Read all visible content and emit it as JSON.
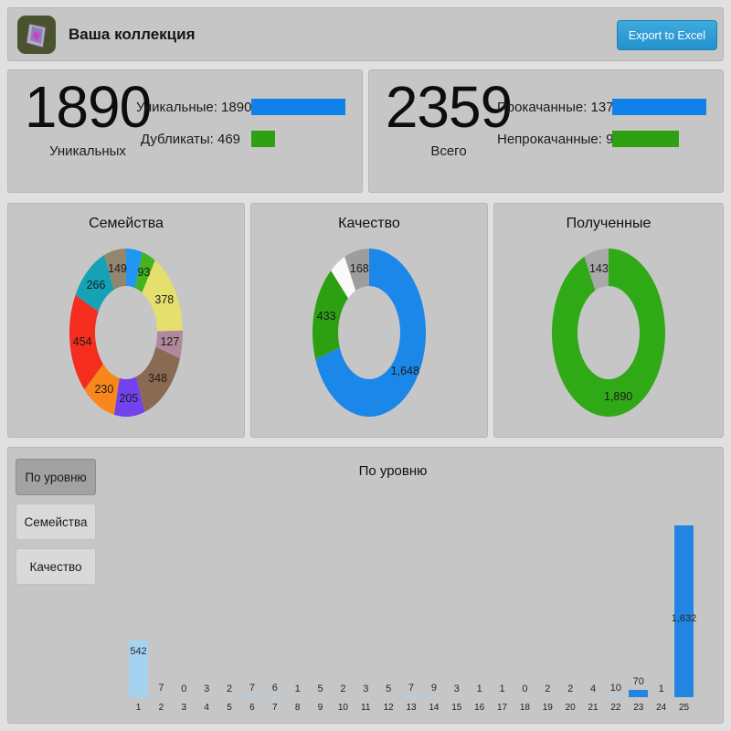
{
  "header": {
    "title": "Ваша коллекция",
    "export_label": "Export to Excel"
  },
  "colors": {
    "page_bg": "#e0e0e0",
    "panel_bg": "#c6c6c6",
    "legend_blue": "#0e82e8",
    "legend_green": "#2ea012",
    "button_blue": "#2d9fd6",
    "bar_light": "#a6d2f2",
    "bar_strong": "#2285e2"
  },
  "stats": [
    {
      "big": "1890",
      "caption": "Уникальных",
      "max": 1890,
      "rows": [
        {
          "label": "Уникальные: 1890",
          "value": 1890,
          "color": "#0e82e8"
        },
        {
          "label": "Дубликаты: 469",
          "value": 469,
          "color": "#2ea012"
        }
      ]
    },
    {
      "big": "2359",
      "caption": "Всего",
      "max": 1379,
      "rows": [
        {
          "label": "Прокачанные: 1379",
          "value": 1379,
          "color": "#0e82e8"
        },
        {
          "label": "Непрокачанные: 980",
          "value": 980,
          "color": "#2ea012"
        }
      ]
    }
  ],
  "tabs": [
    {
      "label": "По уровню",
      "active": true
    },
    {
      "label": "Семейства",
      "active": false
    },
    {
      "label": "Качество",
      "active": false
    }
  ],
  "chart_data": [
    {
      "type": "pie",
      "subtype": "donut",
      "title": "Семейства",
      "legend_position": "none",
      "segments": [
        {
          "label": "",
          "value": 109,
          "color": "#2196f3"
        },
        {
          "label": "93",
          "value": 93,
          "color": "#43b41e"
        },
        {
          "label": "378",
          "value": 378,
          "color": "#e5df6e"
        },
        {
          "label": "127",
          "value": 127,
          "color": "#b1889b"
        },
        {
          "label": "348",
          "value": 348,
          "color": "#8a6a52"
        },
        {
          "label": "205",
          "value": 205,
          "color": "#7142ee"
        },
        {
          "label": "230",
          "value": 230,
          "color": "#f8871c"
        },
        {
          "label": "454",
          "value": 454,
          "color": "#f42d1e"
        },
        {
          "label": "266",
          "value": 266,
          "color": "#16a2b6"
        },
        {
          "label": "149",
          "value": 149,
          "color": "#92866f"
        }
      ]
    },
    {
      "type": "pie",
      "subtype": "donut",
      "title": "Качество",
      "legend_position": "none",
      "segments": [
        {
          "label": "1,648",
          "value": 1648,
          "color": "#1b87e8"
        },
        {
          "label": "433",
          "value": 433,
          "color": "#2da012"
        },
        {
          "label": "",
          "value": 110,
          "color": "#fafafa"
        },
        {
          "label": "168",
          "value": 168,
          "color": "#9d9d9d"
        }
      ]
    },
    {
      "type": "pie",
      "subtype": "donut",
      "title": "Полученные",
      "legend_position": "none",
      "segments": [
        {
          "label": "1,890",
          "value": 1890,
          "color": "#2faa16"
        },
        {
          "label": "143",
          "value": 143,
          "color": "#a9a9a9"
        }
      ]
    },
    {
      "type": "bar",
      "title": "По уровню",
      "xlabel": "",
      "ylabel": "",
      "ylim": [
        0,
        1700
      ],
      "grid": false,
      "legend_position": "none",
      "categories": [
        "1",
        "2",
        "3",
        "4",
        "5",
        "6",
        "7",
        "8",
        "9",
        "10",
        "11",
        "12",
        "13",
        "14",
        "15",
        "16",
        "17",
        "18",
        "19",
        "20",
        "21",
        "22",
        "23",
        "24",
        "25"
      ],
      "values": [
        542,
        7,
        0,
        3,
        2,
        7,
        6,
        1,
        5,
        2,
        3,
        5,
        7,
        9,
        3,
        1,
        1,
        0,
        2,
        2,
        4,
        10,
        70,
        1,
        1632
      ],
      "value_labels": [
        "542",
        "7",
        "0",
        "3",
        "2",
        "7",
        "6",
        "1",
        "5",
        "2",
        "3",
        "5",
        "7",
        "9",
        "3",
        "1",
        "1",
        "0",
        "2",
        "2",
        "4",
        "10",
        "70",
        "1",
        "1,632"
      ],
      "strong_bars": [
        "23",
        "25"
      ]
    }
  ]
}
